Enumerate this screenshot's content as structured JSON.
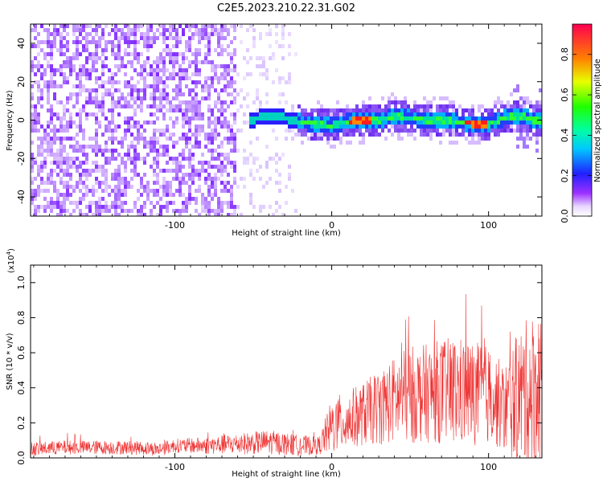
{
  "figure_title": "C2E5.2023.210.22.31.G02",
  "chart_data": [
    {
      "type": "heatmap",
      "title": "",
      "xlabel": "Height of straight line (km)",
      "ylabel": "Frequency (Hz)",
      "xlim": [
        -192,
        134
      ],
      "ylim": [
        -50,
        50
      ],
      "x_ticks": [
        -100,
        0,
        100
      ],
      "x_tick_labels": [
        "-100",
        "0",
        "100"
      ],
      "y_ticks": [
        -40,
        -20,
        0,
        20,
        40
      ],
      "y_tick_labels": [
        "-40",
        "-20",
        "0",
        "20",
        "40"
      ],
      "colorbar": {
        "label": "Normalized spectral amplitude",
        "range": [
          0,
          0.95
        ],
        "ticks": [
          0,
          0.2,
          0.4,
          0.6,
          0.8
        ],
        "tick_labels": [
          "0.0",
          "0.2",
          "0.4",
          "0.6",
          "0.8"
        ],
        "colormap": "hsv-rainbow"
      },
      "ridge": {
        "x": [
          -60,
          -50,
          -40,
          -30,
          -20,
          -10,
          0,
          10,
          20,
          30,
          40,
          50,
          60,
          70,
          80,
          90,
          100,
          110,
          120,
          130
        ],
        "y": [
          0,
          0.5,
          2,
          1,
          -1,
          -2,
          -3,
          -1,
          0,
          0,
          2,
          1,
          0,
          0,
          -1,
          -2,
          -2,
          1,
          2,
          0
        ]
      }
    },
    {
      "type": "line",
      "title": "",
      "xlabel": "Height of straight line (km)",
      "ylabel": "SNR (10 * v/v)",
      "y_scale_note": "(x10",
      "y_scale_exp": "4",
      "y_scale_close": ")",
      "xlim": [
        -192,
        134
      ],
      "ylim": [
        0,
        1.1
      ],
      "x_ticks": [
        -100,
        0,
        100
      ],
      "x_tick_labels": [
        "-100",
        "0",
        "100"
      ],
      "y_ticks": [
        0,
        0.2,
        0.4,
        0.6,
        0.8,
        1.0
      ],
      "y_tick_labels": [
        "0.0",
        "0.2",
        "0.4",
        "0.6",
        "0.8",
        "1.0"
      ],
      "series": [
        {
          "name": "SNR",
          "color": "#ee3333",
          "envelope": {
            "x": [
              -192,
              -170,
              -150,
              -130,
              -110,
              -100,
              -80,
              -60,
              -40,
              -20,
              -8,
              0,
              20,
              40,
              50,
              60,
              70,
              80,
              90,
              100,
              110,
              120,
              130,
              134
            ],
            "mean": [
              0.05,
              0.06,
              0.06,
              0.06,
              0.05,
              0.07,
              0.07,
              0.08,
              0.09,
              0.07,
              0.07,
              0.18,
              0.25,
              0.33,
              0.36,
              0.37,
              0.38,
              0.38,
              0.37,
              0.36,
              0.28,
              0.35,
              0.4,
              0.4
            ],
            "spread": [
              0.04,
              0.04,
              0.04,
              0.04,
              0.04,
              0.04,
              0.05,
              0.06,
              0.07,
              0.06,
              0.05,
              0.16,
              0.18,
              0.25,
              0.28,
              0.28,
              0.3,
              0.32,
              0.3,
              0.28,
              0.25,
              0.4,
              0.45,
              0.45
            ]
          }
        }
      ]
    }
  ]
}
